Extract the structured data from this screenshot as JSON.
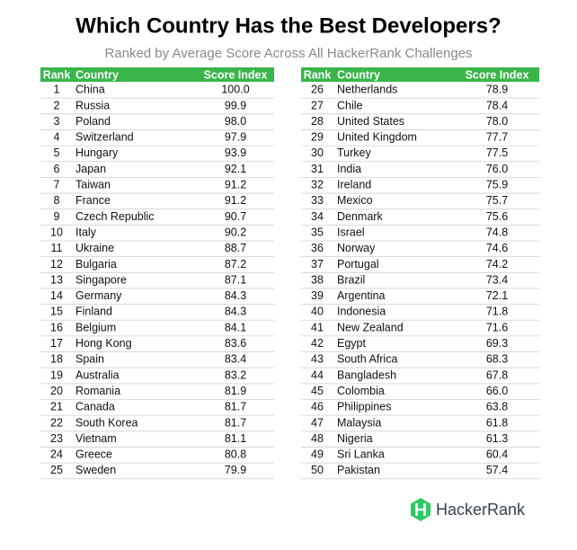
{
  "header": {
    "title": "Which Country Has the Best Developers?",
    "subtitle": "Ranked by Average Score Across All HackerRank Challenges"
  },
  "tables": [
    {
      "columns": [
        "Rank",
        "Country",
        "Score Index"
      ],
      "rows": [
        [
          "1",
          "China",
          "100.0"
        ],
        [
          "2",
          "Russia",
          "99.9"
        ],
        [
          "3",
          "Poland",
          "98.0"
        ],
        [
          "4",
          "Switzerland",
          "97.9"
        ],
        [
          "5",
          "Hungary",
          "93.9"
        ],
        [
          "6",
          "Japan",
          "92.1"
        ],
        [
          "7",
          "Taiwan",
          "91.2"
        ],
        [
          "8",
          "France",
          "91.2"
        ],
        [
          "9",
          "Czech Republic",
          "90.7"
        ],
        [
          "10",
          "Italy",
          "90.2"
        ],
        [
          "11",
          "Ukraine",
          "88.7"
        ],
        [
          "12",
          "Bulgaria",
          "87.2"
        ],
        [
          "13",
          "Singapore",
          "87.1"
        ],
        [
          "14",
          "Germany",
          "84.3"
        ],
        [
          "15",
          "Finland",
          "84.3"
        ],
        [
          "16",
          "Belgium",
          "84.1"
        ],
        [
          "17",
          "Hong Kong",
          "83.6"
        ],
        [
          "18",
          "Spain",
          "83.4"
        ],
        [
          "19",
          "Australia",
          "83.2"
        ],
        [
          "20",
          "Romania",
          "81.9"
        ],
        [
          "21",
          "Canada",
          "81.7"
        ],
        [
          "22",
          "South Korea",
          "81.7"
        ],
        [
          "23",
          "Vietnam",
          "81.1"
        ],
        [
          "24",
          "Greece",
          "80.8"
        ],
        [
          "25",
          "Sweden",
          "79.9"
        ]
      ]
    },
    {
      "columns": [
        "Rank",
        "Country",
        "Score Index"
      ],
      "rows": [
        [
          "26",
          "Netherlands",
          "78.9"
        ],
        [
          "27",
          "Chile",
          "78.4"
        ],
        [
          "28",
          "United States",
          "78.0"
        ],
        [
          "29",
          "United Kingdom",
          "77.7"
        ],
        [
          "30",
          "Turkey",
          "77.5"
        ],
        [
          "31",
          "India",
          "76.0"
        ],
        [
          "32",
          "Ireland",
          "75.9"
        ],
        [
          "33",
          "Mexico",
          "75.7"
        ],
        [
          "34",
          "Denmark",
          "75.6"
        ],
        [
          "35",
          "Israel",
          "74.8"
        ],
        [
          "36",
          "Norway",
          "74.6"
        ],
        [
          "37",
          "Portugal",
          "74.2"
        ],
        [
          "38",
          "Brazil",
          "73.4"
        ],
        [
          "39",
          "Argentina",
          "72.1"
        ],
        [
          "40",
          "Indonesia",
          "71.8"
        ],
        [
          "41",
          "New Zealand",
          "71.6"
        ],
        [
          "42",
          "Egypt",
          "69.3"
        ],
        [
          "43",
          "South Africa",
          "68.3"
        ],
        [
          "44",
          "Bangladesh",
          "67.8"
        ],
        [
          "45",
          "Colombia",
          "66.0"
        ],
        [
          "46",
          "Philippines",
          "63.8"
        ],
        [
          "47",
          "Malaysia",
          "61.8"
        ],
        [
          "48",
          "Nigeria",
          "61.3"
        ],
        [
          "49",
          "Sri Lanka",
          "60.4"
        ],
        [
          "50",
          "Pakistan",
          "57.4"
        ]
      ]
    }
  ],
  "footer": {
    "logo": "HackerRank"
  }
}
